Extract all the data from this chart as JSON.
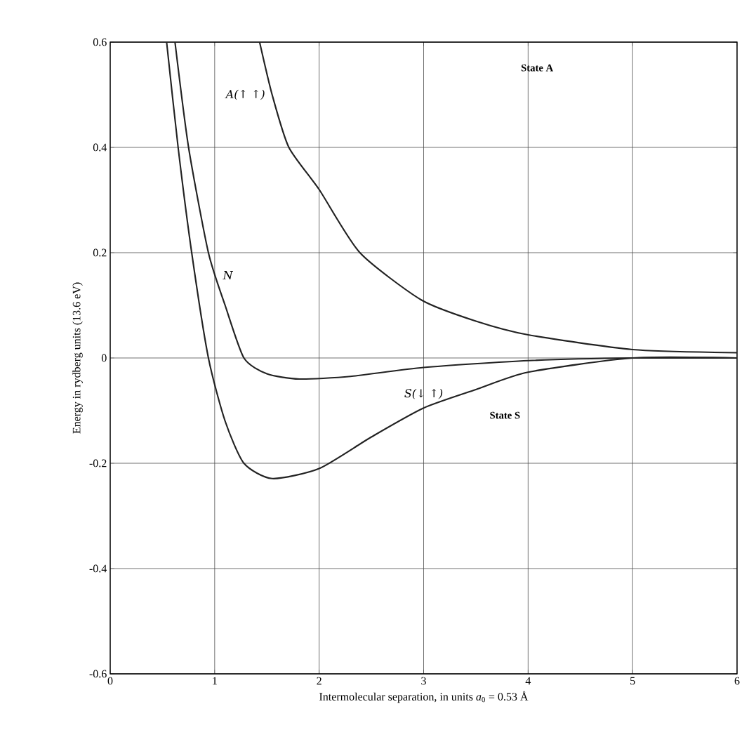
{
  "chart_data": {
    "type": "line",
    "xlabel": "Intermolecular separation, in units *a*$_{0}$ = 0.53 Å",
    "ylabel": "Energy in rydberg units (13.6 eV)",
    "xlim": [
      0,
      6
    ],
    "ylim": [
      -0.6,
      0.6
    ],
    "xticks": [
      0,
      1,
      2,
      3,
      4,
      5,
      6
    ],
    "yticks": [
      -0.6,
      -0.4,
      -0.2,
      0,
      0.2,
      0.4,
      0.6
    ],
    "grid": true,
    "legend": false,
    "marker": "none",
    "line_style": "solid",
    "annotations": [
      "State A",
      "State S"
    ],
    "series": [
      {
        "name": "A(↑ ↑)",
        "color": "#222222",
        "x": [
          1.43,
          1.55,
          1.71,
          2.0,
          2.39,
          2.98,
          3.5,
          4.0,
          5.0,
          6.0
        ],
        "values": [
          0.6,
          0.5,
          0.4,
          0.32,
          0.2,
          0.11,
          0.07,
          0.044,
          0.016,
          0.01
        ]
      },
      {
        "name": "N",
        "color": "#222222",
        "x": [
          0.62,
          0.75,
          0.94,
          1.1,
          1.28,
          1.5,
          1.81,
          2.3,
          3.0,
          4.0,
          5.0,
          6.0
        ],
        "values": [
          0.6,
          0.4,
          0.2,
          0.1,
          0.0,
          -0.03,
          -0.04,
          -0.035,
          -0.018,
          -0.005,
          0.0,
          0.0
        ]
      },
      {
        "name": "S(↓ ↑)",
        "color": "#222222",
        "x": [
          0.54,
          0.65,
          0.78,
          0.94,
          1.1,
          1.28,
          1.55,
          2.0,
          2.5,
          3.0,
          3.5,
          4.0,
          5.0,
          6.0
        ],
        "values": [
          0.6,
          0.4,
          0.2,
          0.0,
          -0.12,
          -0.2,
          -0.229,
          -0.21,
          -0.15,
          -0.095,
          -0.06,
          -0.027,
          0.0,
          0.0
        ]
      }
    ]
  }
}
